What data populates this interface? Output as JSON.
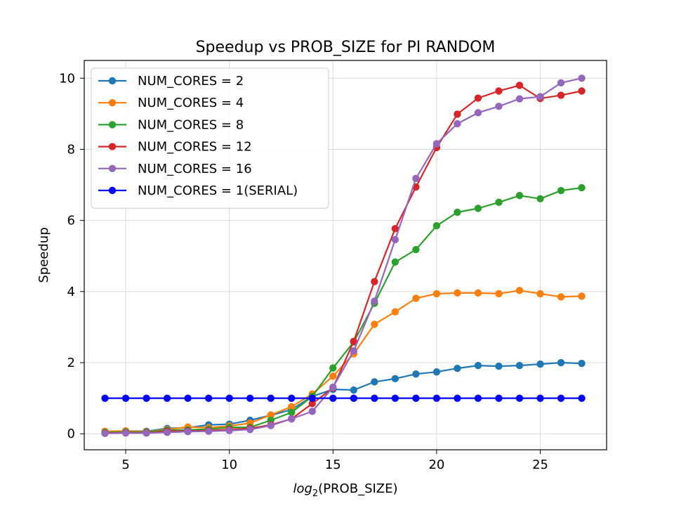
{
  "chart_data": {
    "type": "line",
    "title": "Speedup vs PROB_SIZE for PI RANDOM",
    "xlabel": "log2(PROB_SIZE)",
    "xlabel_parts": {
      "base": "log",
      "subscript": "2",
      "rest": "(PROB_SIZE)"
    },
    "ylabel": "Speedup",
    "xlim": [
      3,
      28.2
    ],
    "ylim": [
      -0.45,
      10.5
    ],
    "xticks": [
      5,
      10,
      15,
      20,
      25
    ],
    "yticks": [
      0,
      2,
      4,
      6,
      8,
      10
    ],
    "grid": true,
    "legend_position": "upper-left",
    "x": [
      4,
      5,
      6,
      7,
      8,
      9,
      10,
      11,
      12,
      13,
      14,
      15,
      16,
      17,
      18,
      19,
      20,
      21,
      22,
      23,
      24,
      25,
      26,
      27
    ],
    "series": [
      {
        "name": "NUM_CORES = 2",
        "color": "#1f77b4",
        "values": [
          0.05,
          0.08,
          0.07,
          0.15,
          0.17,
          0.25,
          0.27,
          0.38,
          0.52,
          0.68,
          1.05,
          1.25,
          1.23,
          1.46,
          1.55,
          1.68,
          1.74,
          1.84,
          1.92,
          1.9,
          1.92,
          1.96,
          2.0,
          1.98
        ]
      },
      {
        "name": "NUM_CORES = 4",
        "color": "#ff7f0e",
        "values": [
          0.07,
          0.08,
          0.06,
          0.12,
          0.19,
          0.17,
          0.22,
          0.3,
          0.53,
          0.76,
          1.12,
          1.62,
          2.25,
          3.08,
          3.43,
          3.81,
          3.94,
          3.96,
          3.96,
          3.94,
          4.03,
          3.94,
          3.85,
          3.87
        ]
      },
      {
        "name": "NUM_CORES = 8",
        "color": "#2ca02c",
        "values": [
          0.04,
          0.05,
          0.05,
          0.1,
          0.11,
          0.13,
          0.18,
          0.18,
          0.38,
          0.6,
          1.05,
          1.85,
          2.58,
          3.67,
          4.83,
          5.18,
          5.85,
          6.23,
          6.34,
          6.51,
          6.7,
          6.61,
          6.84,
          6.92
        ]
      },
      {
        "name": "NUM_CORES = 12",
        "color": "#d62728",
        "values": [
          0.02,
          0.03,
          0.03,
          0.07,
          0.08,
          0.09,
          0.12,
          0.15,
          0.25,
          0.42,
          0.85,
          1.29,
          2.6,
          4.28,
          5.77,
          6.94,
          8.05,
          8.99,
          9.44,
          9.64,
          9.8,
          9.43,
          9.52,
          9.64
        ]
      },
      {
        "name": "NUM_CORES = 16",
        "color": "#9467bd",
        "values": [
          0.01,
          0.02,
          0.02,
          0.04,
          0.06,
          0.07,
          0.09,
          0.12,
          0.23,
          0.42,
          0.63,
          1.31,
          2.33,
          3.73,
          5.46,
          7.18,
          8.16,
          8.72,
          9.03,
          9.21,
          9.42,
          9.48,
          9.87,
          10.0
        ]
      },
      {
        "name": "NUM_CORES = 1(SERIAL)",
        "color": "#0000ff",
        "values": [
          1,
          1,
          1,
          1,
          1,
          1,
          1,
          1,
          1,
          1,
          1,
          1,
          1,
          1,
          1,
          1,
          1,
          1,
          1,
          1,
          1,
          1,
          1,
          1
        ]
      }
    ]
  }
}
